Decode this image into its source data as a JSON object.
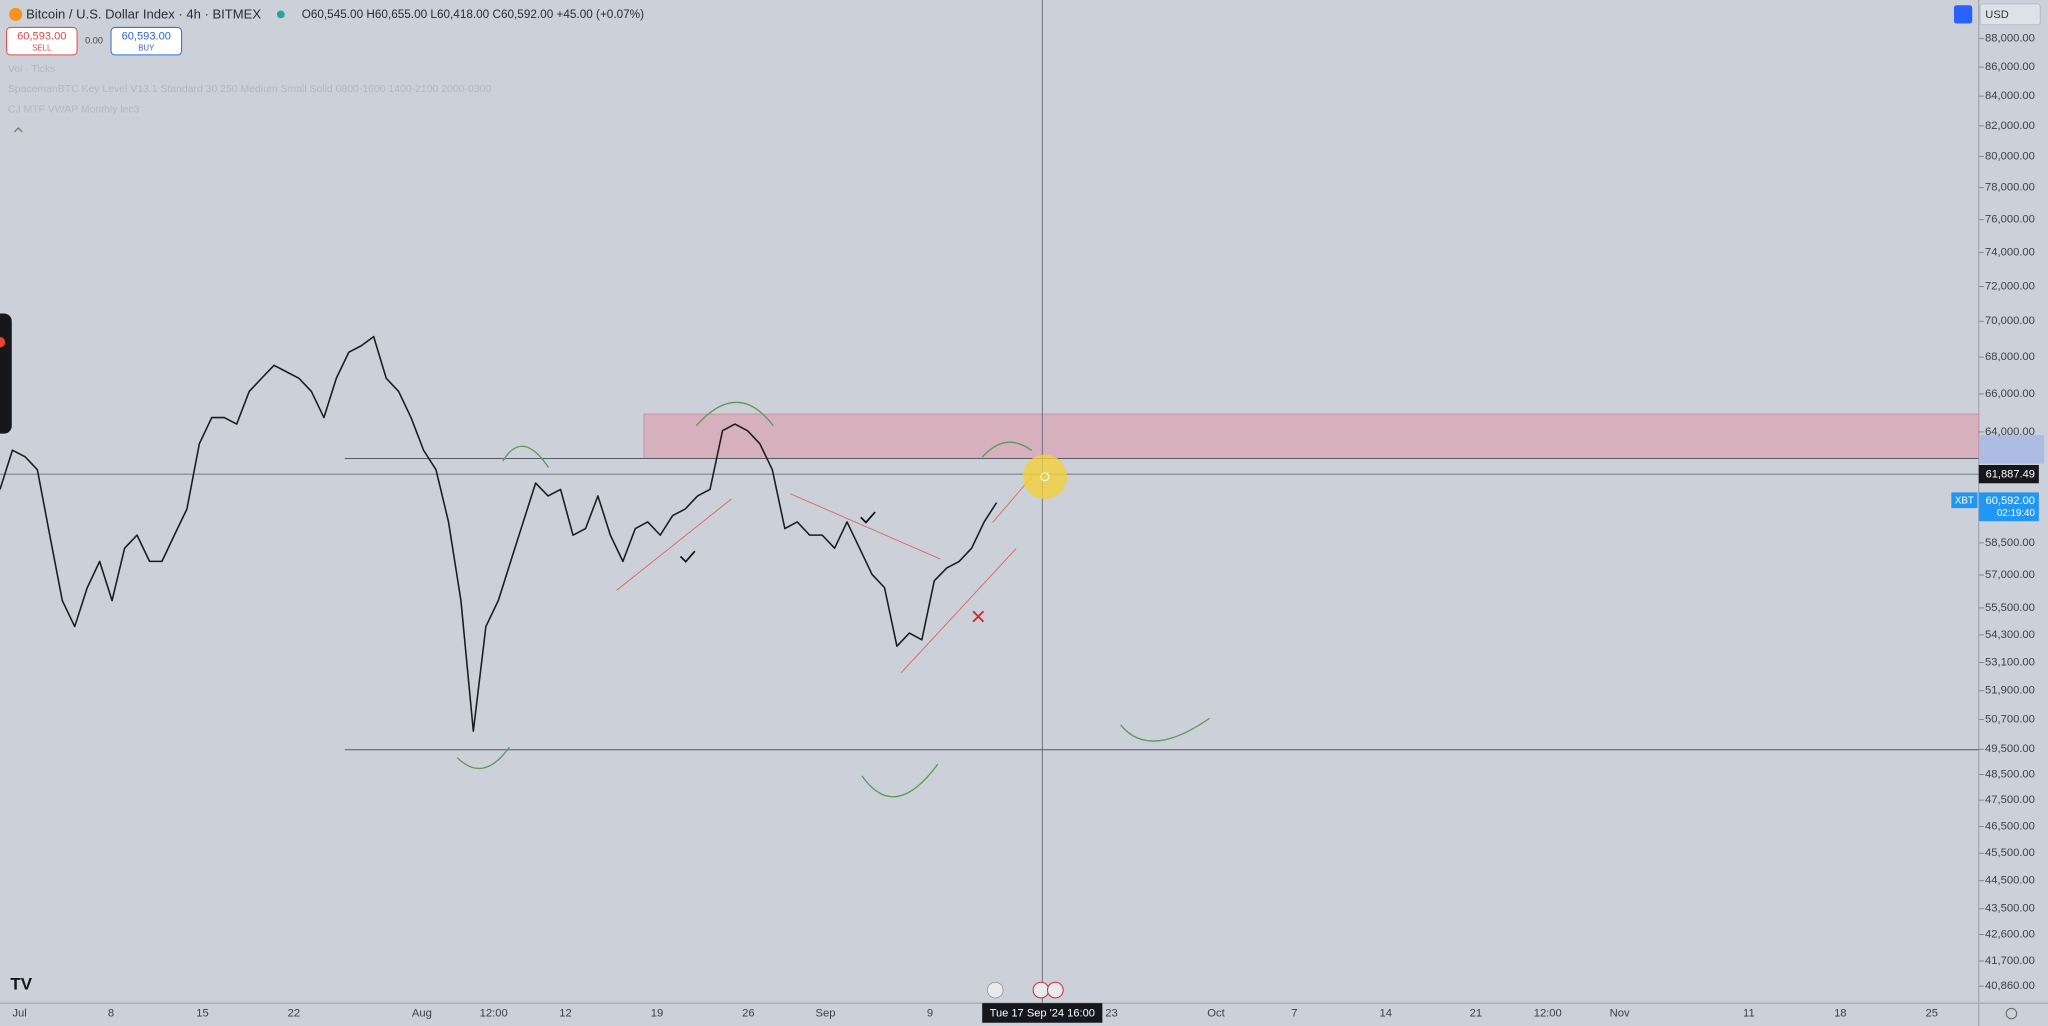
{
  "header": {
    "symbol": "Bitcoin / U.S. Dollar Index · 4h · BITMEX",
    "ohlc": "O60,545.00 H60,655.00 L60,418.00 C60,592.00 +45.00 (+0.07%)",
    "sell_price": "60,593.00",
    "sell_label": "SELL",
    "spread": "0.00",
    "buy_price": "60,593.00",
    "buy_label": "BUY",
    "currency": "USD"
  },
  "indicators": [
    "Vol · Ticks",
    "SpacemanBTC Key Level V13.1 Standard 30 250 Medium Small Solid 0800-1600 1400-2100 2000-0300",
    "CJ MTF VWAP Monthly lec3"
  ],
  "chart": {
    "type": "line",
    "color": "#1a1c22",
    "log_scale": true,
    "ylim": [
      40300,
      90800
    ],
    "values": [
      61090,
      63060,
      62730,
      62070,
      58870,
      55830,
      54670,
      56420,
      57630,
      55830,
      58250,
      58870,
      57630,
      57630,
      58870,
      60130,
      63390,
      64750,
      64750,
      64410,
      66130,
      66840,
      67550,
      67190,
      66840,
      66130,
      64750,
      66840,
      68270,
      68630,
      69140,
      66840,
      66130,
      64750,
      63060,
      62070,
      59500,
      55830,
      50230,
      54670,
      55830,
      57630,
      59500,
      61410,
      60770,
      61090,
      58870,
      59180,
      60770,
      58870,
      57630,
      59180,
      59500,
      58870,
      59810,
      60130,
      60770,
      61090,
      64070,
      64410,
      64070,
      63390,
      62070,
      59180,
      59500,
      58870,
      58870,
      58250,
      59500,
      58250,
      57030,
      56420,
      53810,
      54380,
      54090,
      56730,
      57330,
      57630,
      58250,
      59500,
      60440
    ],
    "yticks": [
      {
        "value": 88000,
        "label": "88,000.00"
      },
      {
        "value": 86000,
        "label": "86,000.00"
      },
      {
        "value": 84000,
        "label": "84,000.00"
      },
      {
        "value": 82000,
        "label": "82,000.00"
      },
      {
        "value": 80000,
        "label": "80,000.00"
      },
      {
        "value": 78000,
        "label": "78,000.00"
      },
      {
        "value": 76000,
        "label": "76,000.00"
      },
      {
        "value": 74000,
        "label": "74,000.00"
      },
      {
        "value": 72000,
        "label": "72,000.00"
      },
      {
        "value": 70000,
        "label": "70,000.00"
      },
      {
        "value": 68000,
        "label": "68,000.00"
      },
      {
        "value": 66000,
        "label": "66,000.00"
      },
      {
        "value": 64000,
        "label": "64,000.00"
      },
      {
        "value": 58500,
        "label": "58,500.00"
      },
      {
        "value": 57000,
        "label": "57,000.00"
      },
      {
        "value": 55500,
        "label": "55,500.00"
      },
      {
        "value": 54300,
        "label": "54,300.00"
      },
      {
        "value": 53100,
        "label": "53,100.00"
      },
      {
        "value": 51900,
        "label": "51,900.00"
      },
      {
        "value": 50700,
        "label": "50,700.00"
      },
      {
        "value": 49500,
        "label": "49,500.00"
      },
      {
        "value": 48500,
        "label": "48,500.00"
      },
      {
        "value": 47500,
        "label": "47,500.00"
      },
      {
        "value": 46500,
        "label": "46,500.00"
      },
      {
        "value": 45500,
        "label": "45,500.00"
      },
      {
        "value": 44500,
        "label": "44,500.00"
      },
      {
        "value": 43500,
        "label": "43,500.00"
      },
      {
        "value": 42600,
        "label": "42,600.00"
      },
      {
        "value": 41700,
        "label": "41,700.00"
      },
      {
        "value": 40860,
        "label": "40,860.00"
      }
    ],
    "crosshair_price": "61,887.49",
    "last_symbol": "XBT",
    "last_price": "60,592.00",
    "countdown": "02:19:40",
    "time_labels": [
      "Jul",
      "8",
      "15",
      "22",
      "Aug",
      "12:00",
      "12",
      "19",
      "26",
      "Sep",
      "9",
      "23",
      "Oct",
      "7",
      "14",
      "21",
      "12:00",
      "Nov",
      "11",
      "18",
      "25"
    ],
    "crosshair_time": "Tue 17 Sep '24   16:00"
  }
}
